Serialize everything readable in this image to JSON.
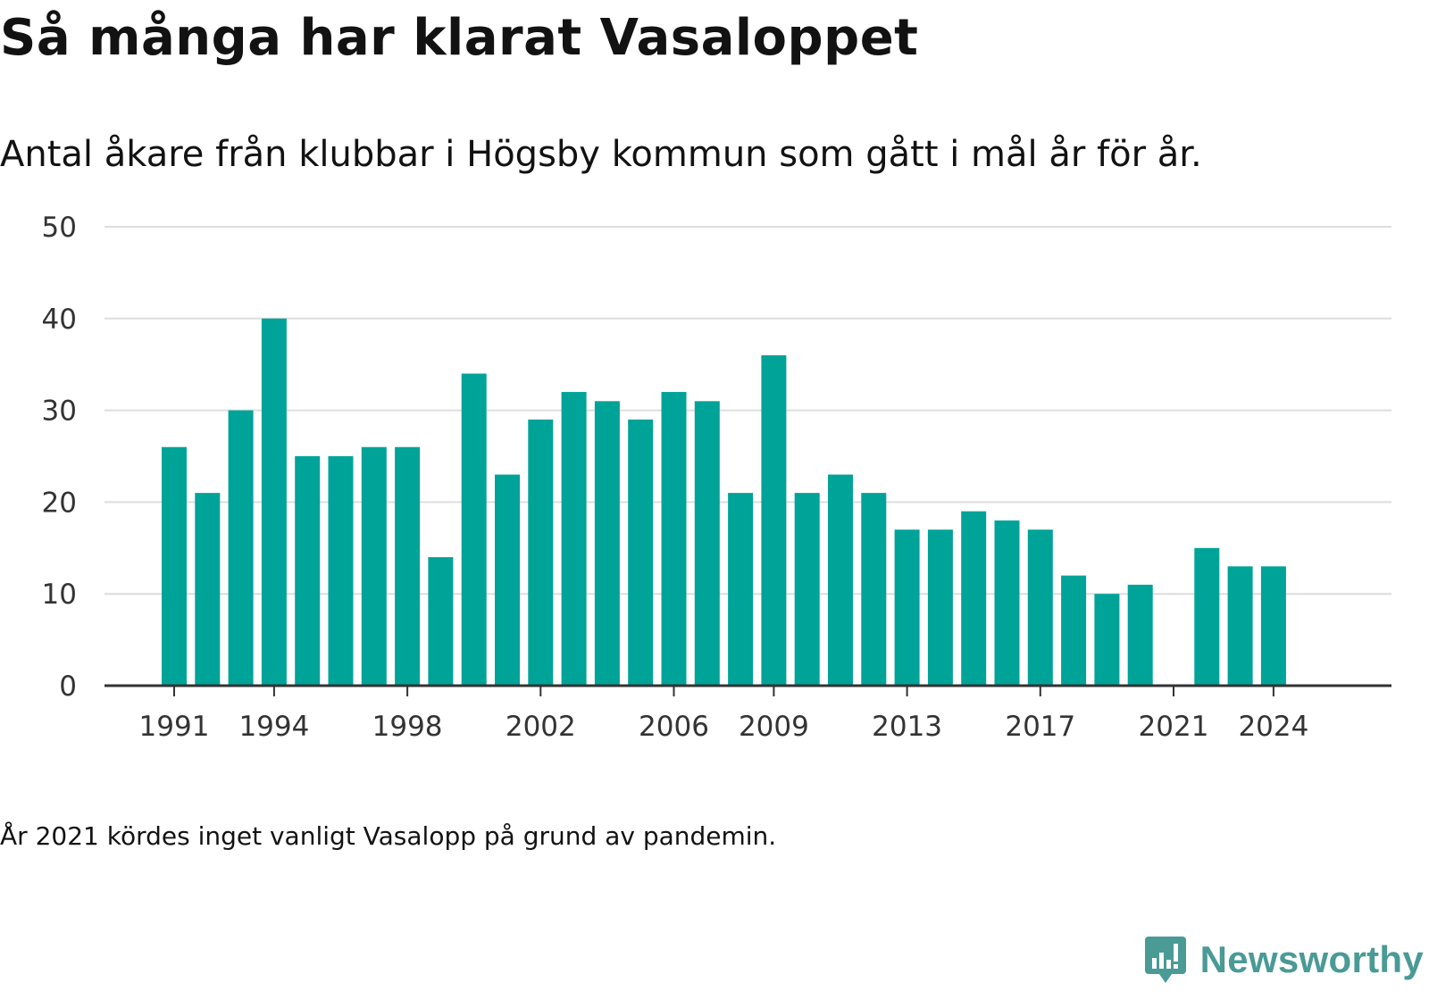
{
  "header": {
    "title": "Så många har klarat Vasaloppet",
    "subtitle": "Antal åkare från klubbar i Högsby kommun som gått i mål år för år."
  },
  "footer": {
    "note": "År 2021 kördes inget vanligt Vasalopp på grund av pandemin.",
    "brand_name": "Newsworthy",
    "brand_icon": "bar-chart-speech-bubble-icon"
  },
  "colors": {
    "bar": "#00a398",
    "grid": "#dddddd",
    "axis": "#333333",
    "brand": "#4a9a96"
  },
  "chart_data": {
    "type": "bar",
    "title": "Så många har klarat Vasaloppet",
    "subtitle": "Antal åkare från klubbar i Högsby kommun som gått i mål år för år.",
    "xlabel": "",
    "ylabel": "",
    "ylim": [
      0,
      50
    ],
    "yticks": [
      0,
      10,
      20,
      30,
      40,
      50
    ],
    "xtick_labels": [
      "1991",
      "1994",
      "1998",
      "2002",
      "2006",
      "2009",
      "2013",
      "2017",
      "2021",
      "2024"
    ],
    "grid": true,
    "legend": "none",
    "categories": [
      1991,
      1992,
      1993,
      1994,
      1995,
      1996,
      1997,
      1998,
      1999,
      2000,
      2001,
      2002,
      2003,
      2004,
      2005,
      2006,
      2007,
      2008,
      2009,
      2010,
      2011,
      2012,
      2013,
      2014,
      2015,
      2016,
      2017,
      2018,
      2019,
      2020,
      2021,
      2022,
      2023,
      2024
    ],
    "values": [
      26,
      21,
      30,
      40,
      25,
      25,
      26,
      26,
      14,
      34,
      23,
      29,
      32,
      31,
      29,
      32,
      31,
      21,
      36,
      21,
      23,
      21,
      17,
      17,
      19,
      18,
      17,
      12,
      10,
      11,
      null,
      15,
      13,
      13
    ]
  }
}
